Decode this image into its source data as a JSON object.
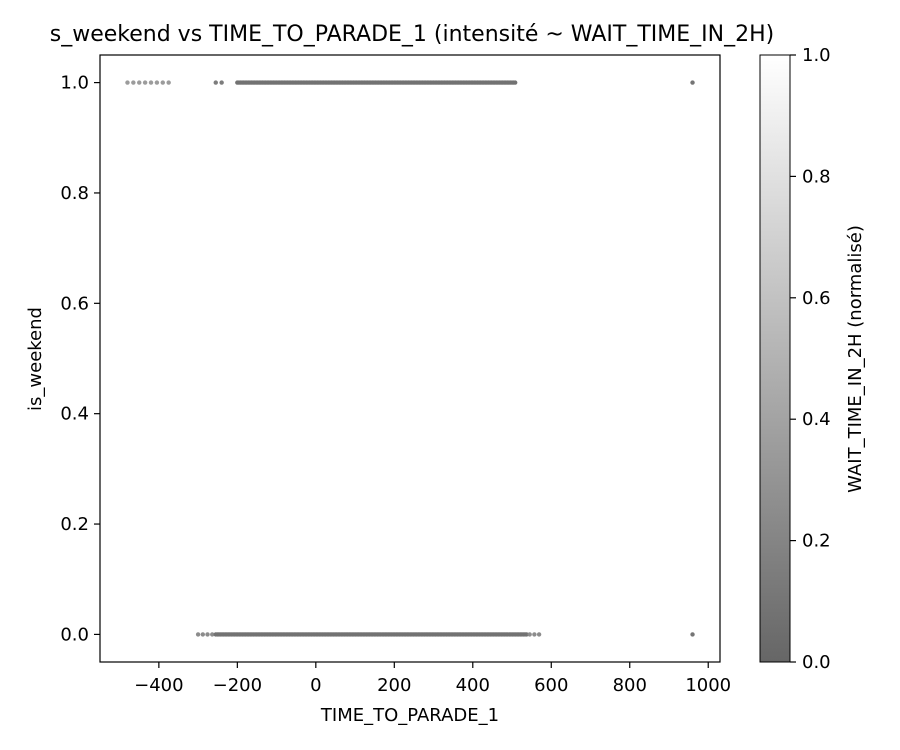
{
  "chart_data": {
    "type": "scatter",
    "title": "s_weekend vs TIME_TO_PARADE_1 (intensité ~ WAIT_TIME_IN_2H)",
    "xlabel": "TIME_TO_PARADE_1",
    "ylabel": "is_weekend",
    "xlim": [
      -550,
      1030
    ],
    "ylim": [
      -0.05,
      1.05
    ],
    "x_ticks": [
      -400,
      -200,
      0,
      200,
      400,
      600,
      800,
      1000
    ],
    "x_tick_labels": [
      "−400",
      "−200",
      "0",
      "200",
      "400",
      "600",
      "800",
      "1000"
    ],
    "y_ticks": [
      0.0,
      0.2,
      0.4,
      0.6,
      0.8,
      1.0
    ],
    "y_tick_labels": [
      "0.0",
      "0.2",
      "0.4",
      "0.6",
      "0.8",
      "1.0"
    ],
    "grid": false,
    "colorbar": {
      "label": "WAIT_TIME_IN_2H (normalisé)",
      "range": [
        0,
        1
      ],
      "ticks": [
        0.0,
        0.2,
        0.4,
        0.6,
        0.8,
        1.0
      ],
      "tick_labels": [
        "0.0",
        "0.2",
        "0.4",
        "0.6",
        "0.8",
        "1.0"
      ],
      "colormap": "gray",
      "alpha": 0.6
    },
    "series": [
      {
        "segments": [
          {
            "y": 1,
            "x_start": -480,
            "x_end": -375,
            "step": 15,
            "intensity": 0.35
          },
          {
            "y": 1,
            "x_start": -255,
            "x_end": -240,
            "step": 15,
            "intensity": 0.15
          },
          {
            "y": 1,
            "x_start": -200,
            "x_end": 510,
            "step": 4,
            "intensity": 0.08
          },
          {
            "y": 1,
            "x_start": 960,
            "x_end": 960,
            "step": 1,
            "intensity": 0.1
          },
          {
            "y": 0,
            "x_start": -300,
            "x_end": -260,
            "step": 12,
            "intensity": 0.25
          },
          {
            "y": 0,
            "x_start": -255,
            "x_end": 540,
            "step": 4,
            "intensity": 0.08
          },
          {
            "y": 0,
            "x_start": 545,
            "x_end": 570,
            "step": 12,
            "intensity": 0.25
          },
          {
            "y": 0,
            "x_start": 960,
            "x_end": 960,
            "step": 1,
            "intensity": 0.1
          }
        ]
      }
    ]
  }
}
